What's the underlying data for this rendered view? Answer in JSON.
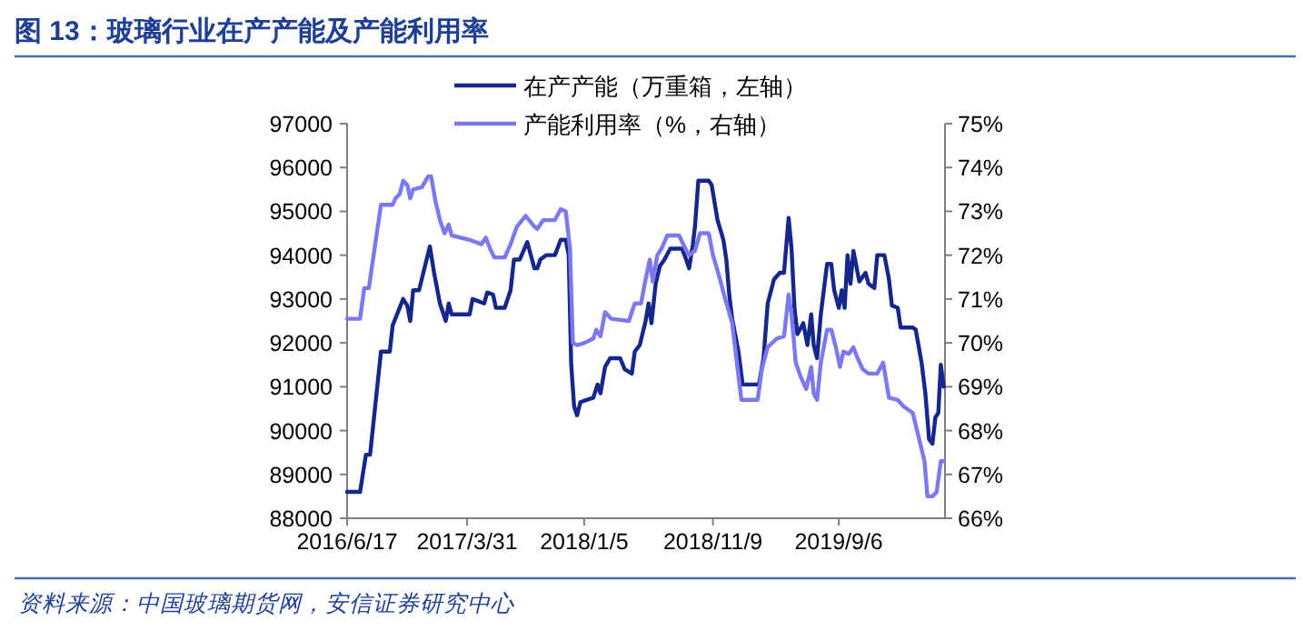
{
  "chart_data": {
    "type": "line",
    "title": "图 13：玻璃行业在产产能及产能利用率",
    "annotations": [
      "资料来源：中国玻璃期货网，安信证券研究中心"
    ],
    "legend": "top",
    "marker": "none",
    "line_style": "solid",
    "xlim": [
      "2016-06-17",
      "2020-05-17"
    ],
    "xticks": [
      {
        "value": "2016-06-17",
        "label": "2016/6/17"
      },
      {
        "value": "2017-03-31",
        "label": "2017/3/31"
      },
      {
        "value": "2018-01-05",
        "label": "2018/1/5"
      },
      {
        "value": "2018-11-09",
        "label": "2018/11/9"
      },
      {
        "value": "2019-09-06",
        "label": "2019/9/6"
      }
    ],
    "ylim": [
      88000,
      97000
    ],
    "yticks": [
      88000,
      89000,
      90000,
      91000,
      92000,
      93000,
      94000,
      95000,
      96000,
      97000
    ],
    "y2lim": [
      66,
      75
    ],
    "y2ticks": [
      {
        "value": 66,
        "label": "66%"
      },
      {
        "value": 67,
        "label": "67%"
      },
      {
        "value": 68,
        "label": "68%"
      },
      {
        "value": 69,
        "label": "69%"
      },
      {
        "value": 70,
        "label": "70%"
      },
      {
        "value": 71,
        "label": "71%"
      },
      {
        "value": 72,
        "label": "72%"
      },
      {
        "value": 73,
        "label": "73%"
      },
      {
        "value": 74,
        "label": "74%"
      },
      {
        "value": 75,
        "label": "75%"
      }
    ],
    "series": [
      {
        "name": "在产产能（万重箱，左轴）",
        "color": "#15278c",
        "axis": "y",
        "x": [
          "2016-06-17",
          "2016-07-18",
          "2016-08-01",
          "2016-08-11",
          "2016-09-06",
          "2016-09-27",
          "2016-10-04",
          "2016-10-29",
          "2016-11-08",
          "2016-11-15",
          "2016-11-22",
          "2016-12-06",
          "2017-01-01",
          "2017-01-11",
          "2017-01-25",
          "2017-02-08",
          "2017-02-15",
          "2017-02-22",
          "2017-04-06",
          "2017-04-13",
          "2017-05-11",
          "2017-05-18",
          "2017-06-01",
          "2017-06-08",
          "2017-06-29",
          "2017-07-13",
          "2017-07-21",
          "2017-08-04",
          "2017-08-22",
          "2017-09-08",
          "2017-09-15",
          "2017-09-22",
          "2017-10-06",
          "2017-10-27",
          "2017-11-10",
          "2017-11-22",
          "2017-11-29",
          "2017-12-05",
          "2017-12-12",
          "2017-12-19",
          "2017-12-27",
          "2018-01-27",
          "2018-02-06",
          "2018-02-13",
          "2018-02-24",
          "2018-03-08",
          "2018-04-01",
          "2018-04-12",
          "2018-04-29",
          "2018-05-06",
          "2018-05-18",
          "2018-06-01",
          "2018-06-08",
          "2018-06-15",
          "2018-06-25",
          "2018-07-05",
          "2018-07-16",
          "2018-07-30",
          "2018-08-27",
          "2018-09-04",
          "2018-09-13",
          "2018-09-22",
          "2018-09-27",
          "2018-10-05",
          "2018-10-30",
          "2018-11-06",
          "2018-11-20",
          "2018-12-04",
          "2018-12-11",
          "2018-12-18",
          "2018-12-25",
          "2019-01-09",
          "2019-01-19",
          "2019-02-27",
          "2019-03-10",
          "2019-03-20",
          "2019-04-04",
          "2019-04-18",
          "2019-04-28",
          "2019-05-09",
          "2019-05-16",
          "2019-05-23",
          "2019-05-30",
          "2019-06-13",
          "2019-06-23",
          "2019-07-02",
          "2019-07-08",
          "2019-07-16",
          "2019-07-25",
          "2019-08-09",
          "2019-08-19",
          "2019-08-26",
          "2019-09-06",
          "2019-09-13",
          "2019-09-20",
          "2019-09-27",
          "2019-10-04",
          "2019-10-11",
          "2019-10-25",
          "2019-11-09",
          "2019-11-16",
          "2019-11-30",
          "2019-12-07",
          "2019-12-24",
          "2020-01-04",
          "2020-01-11",
          "2020-01-25",
          "2020-02-01",
          "2020-03-01",
          "2020-03-08",
          "2020-03-22",
          "2020-03-31",
          "2020-04-09",
          "2020-04-17",
          "2020-04-24",
          "2020-05-01",
          "2020-05-07",
          "2020-05-14"
        ],
        "values": [
          88600,
          88600,
          89450,
          89450,
          91800,
          91800,
          92400,
          93000,
          92850,
          92500,
          93200,
          93200,
          94200,
          93600,
          92900,
          92500,
          92900,
          92650,
          92650,
          93000,
          92900,
          93150,
          93100,
          92800,
          92800,
          93200,
          93900,
          93900,
          94300,
          93700,
          93700,
          93900,
          94000,
          94000,
          94350,
          94350,
          94000,
          91500,
          90550,
          90350,
          90650,
          90750,
          91050,
          90850,
          91450,
          91650,
          91650,
          91400,
          91300,
          91800,
          91950,
          92500,
          92900,
          92450,
          93350,
          93750,
          93900,
          94150,
          94150,
          93950,
          93700,
          94250,
          94650,
          95700,
          95700,
          95600,
          94800,
          94350,
          93900,
          93100,
          92550,
          91800,
          91050,
          91050,
          91650,
          92900,
          93450,
          93600,
          93600,
          94850,
          94150,
          92800,
          92200,
          92450,
          91950,
          92650,
          91950,
          91650,
          92650,
          93800,
          93800,
          93200,
          92800,
          93200,
          92800,
          94000,
          93350,
          94100,
          93400,
          93600,
          93350,
          93250,
          94000,
          94000,
          93450,
          92850,
          92800,
          92350,
          92350,
          92300,
          91550,
          90850,
          89800,
          89700,
          90300,
          90400,
          91500,
          91000
        ]
      },
      {
        "name": "产能利用率（%，右轴）",
        "color": "#7b78f2",
        "axis": "y2",
        "x": [
          "2016-06-17",
          "2016-07-18",
          "2016-07-28",
          "2016-08-08",
          "2016-09-06",
          "2016-10-04",
          "2016-10-11",
          "2016-10-21",
          "2016-10-29",
          "2016-11-08",
          "2016-11-15",
          "2016-11-22",
          "2016-12-13",
          "2016-12-28",
          "2017-01-04",
          "2017-01-14",
          "2017-01-25",
          "2017-02-05",
          "2017-02-15",
          "2017-02-22",
          "2017-04-06",
          "2017-05-04",
          "2017-05-15",
          "2017-05-25",
          "2017-06-04",
          "2017-06-29",
          "2017-07-13",
          "2017-07-28",
          "2017-08-18",
          "2017-09-08",
          "2017-09-15",
          "2017-09-29",
          "2017-10-27",
          "2017-11-10",
          "2017-11-22",
          "2017-12-02",
          "2017-12-09",
          "2017-12-19",
          "2018-01-06",
          "2018-01-27",
          "2018-02-03",
          "2018-02-13",
          "2018-02-24",
          "2018-03-11",
          "2018-04-22",
          "2018-05-06",
          "2018-05-21",
          "2018-06-01",
          "2018-06-11",
          "2018-06-18",
          "2018-06-29",
          "2018-07-09",
          "2018-07-23",
          "2018-08-20",
          "2018-09-04",
          "2018-09-13",
          "2018-09-27",
          "2018-10-09",
          "2018-10-30",
          "2018-11-09",
          "2018-11-23",
          "2018-12-07",
          "2018-12-25",
          "2019-01-04",
          "2019-01-16",
          "2019-02-24",
          "2019-03-06",
          "2019-03-20",
          "2019-04-11",
          "2019-04-28",
          "2019-05-09",
          "2019-05-16",
          "2019-05-26",
          "2019-06-06",
          "2019-06-20",
          "2019-07-02",
          "2019-07-08",
          "2019-07-16",
          "2019-07-25",
          "2019-08-09",
          "2019-08-19",
          "2019-08-30",
          "2019-09-09",
          "2019-09-17",
          "2019-09-30",
          "2019-10-11",
          "2019-10-21",
          "2019-11-02",
          "2019-11-16",
          "2019-12-07",
          "2019-12-21",
          "2020-01-04",
          "2020-01-25",
          "2020-02-08",
          "2020-03-01",
          "2020-03-15",
          "2020-03-29",
          "2020-04-05",
          "2020-04-17",
          "2020-04-27",
          "2020-05-07",
          "2020-05-14"
        ],
        "values": [
          70.55,
          70.55,
          71.25,
          71.25,
          73.15,
          73.15,
          73.3,
          73.4,
          73.7,
          73.6,
          73.3,
          73.5,
          73.55,
          73.8,
          73.8,
          73.25,
          72.8,
          72.5,
          72.7,
          72.45,
          72.35,
          72.25,
          72.4,
          72.15,
          71.95,
          71.95,
          72.25,
          72.65,
          72.9,
          72.65,
          72.6,
          72.8,
          72.8,
          73.05,
          73.0,
          72.15,
          70.0,
          69.95,
          70.0,
          70.1,
          70.3,
          70.15,
          70.7,
          70.55,
          70.5,
          70.9,
          70.9,
          71.45,
          71.9,
          71.4,
          72.0,
          72.15,
          72.45,
          72.45,
          72.15,
          72.0,
          72.1,
          72.5,
          72.5,
          72.0,
          71.55,
          71.05,
          70.45,
          69.65,
          68.7,
          68.7,
          69.4,
          69.9,
          70.1,
          70.15,
          71.1,
          70.65,
          69.55,
          69.25,
          68.95,
          69.45,
          68.85,
          68.7,
          69.55,
          70.3,
          70.3,
          69.9,
          69.45,
          69.8,
          69.75,
          69.9,
          69.65,
          69.4,
          69.3,
          69.3,
          69.55,
          68.75,
          68.7,
          68.55,
          68.4,
          67.85,
          67.3,
          66.5,
          66.5,
          66.6,
          67.3,
          67.3
        ]
      }
    ]
  }
}
